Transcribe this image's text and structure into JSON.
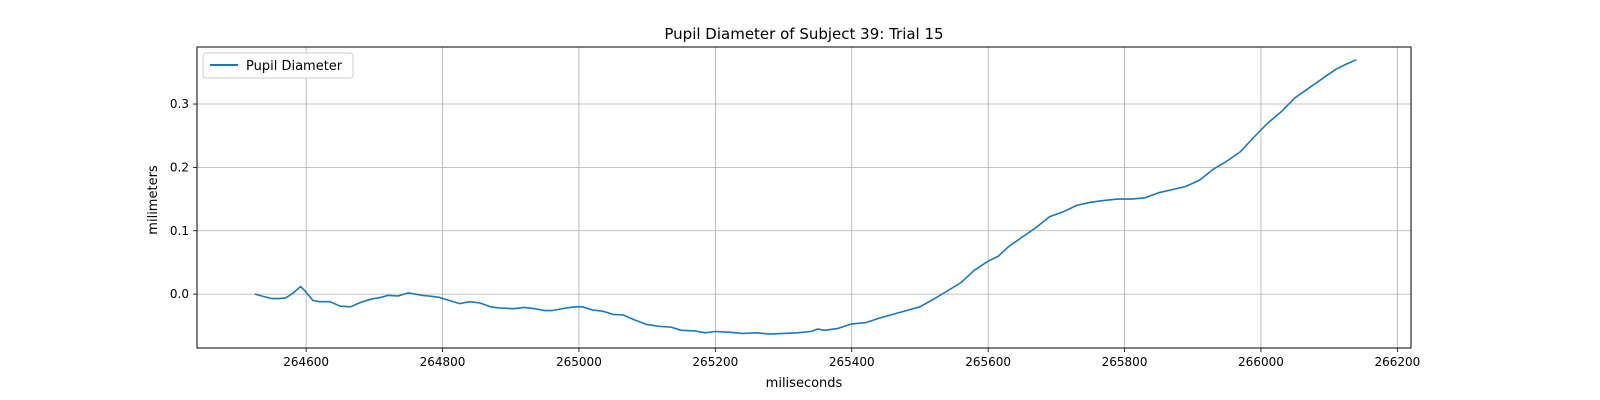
{
  "chart_data": {
    "type": "line",
    "title": "Pupil Diameter of Subject 39: Trial 15",
    "xlabel": "miliseconds",
    "ylabel": "milimeters",
    "xlim": [
      264440,
      266220
    ],
    "ylim": [
      -0.085,
      0.39
    ],
    "xticks": [
      264600,
      264800,
      265000,
      265200,
      265400,
      265600,
      265800,
      266000,
      266200
    ],
    "yticks": [
      0.0,
      0.1,
      0.2,
      0.3
    ],
    "grid": true,
    "legend": {
      "location": "upper-left"
    },
    "series": [
      {
        "name": "Pupil Diameter",
        "color": "#1f77b4",
        "x": [
          264525,
          264535,
          264550,
          264560,
          264570,
          264580,
          264592,
          264600,
          264610,
          264620,
          264635,
          264650,
          264665,
          264680,
          264695,
          264710,
          264720,
          264735,
          264750,
          264760,
          264770,
          264780,
          264795,
          264810,
          264825,
          264840,
          264855,
          264870,
          264885,
          264905,
          264920,
          264935,
          264950,
          264960,
          264980,
          264995,
          265005,
          265020,
          265035,
          265050,
          265065,
          265080,
          265100,
          265120,
          265135,
          265150,
          265170,
          265185,
          265200,
          265220,
          265240,
          265260,
          265280,
          265300,
          265320,
          265340,
          265350,
          265360,
          265380,
          265400,
          265420,
          265440,
          265460,
          265480,
          265500,
          265520,
          265540,
          265560,
          265580,
          265600,
          265615,
          265630,
          265650,
          265670,
          265690,
          265710,
          265730,
          265750,
          265770,
          265790,
          265810,
          265830,
          265850,
          265870,
          265890,
          265910,
          265930,
          265950,
          265970,
          265990,
          266010,
          266030,
          266050,
          266070,
          266090,
          266110,
          266125,
          266140
        ],
        "y": [
          0.0,
          -0.003,
          -0.007,
          -0.007,
          -0.006,
          0.001,
          0.012,
          0.003,
          -0.01,
          -0.012,
          -0.012,
          -0.019,
          -0.02,
          -0.013,
          -0.008,
          -0.005,
          -0.002,
          -0.003,
          0.002,
          0.0,
          -0.002,
          -0.003,
          -0.005,
          -0.01,
          -0.015,
          -0.012,
          -0.014,
          -0.02,
          -0.022,
          -0.023,
          -0.021,
          -0.023,
          -0.026,
          -0.026,
          -0.022,
          -0.02,
          -0.02,
          -0.025,
          -0.027,
          -0.032,
          -0.033,
          -0.04,
          -0.048,
          -0.051,
          -0.052,
          -0.057,
          -0.058,
          -0.061,
          -0.059,
          -0.06,
          -0.062,
          -0.061,
          -0.063,
          -0.062,
          -0.061,
          -0.059,
          -0.055,
          -0.057,
          -0.054,
          -0.047,
          -0.045,
          -0.038,
          -0.032,
          -0.026,
          -0.02,
          -0.008,
          0.005,
          0.018,
          0.038,
          0.052,
          0.06,
          0.075,
          0.09,
          0.105,
          0.122,
          0.13,
          0.14,
          0.145,
          0.148,
          0.15,
          0.15,
          0.152,
          0.16,
          0.165,
          0.17,
          0.18,
          0.197,
          0.21,
          0.225,
          0.248,
          0.27,
          0.288,
          0.31,
          0.325,
          0.34,
          0.355,
          0.363,
          0.37
        ]
      }
    ]
  }
}
